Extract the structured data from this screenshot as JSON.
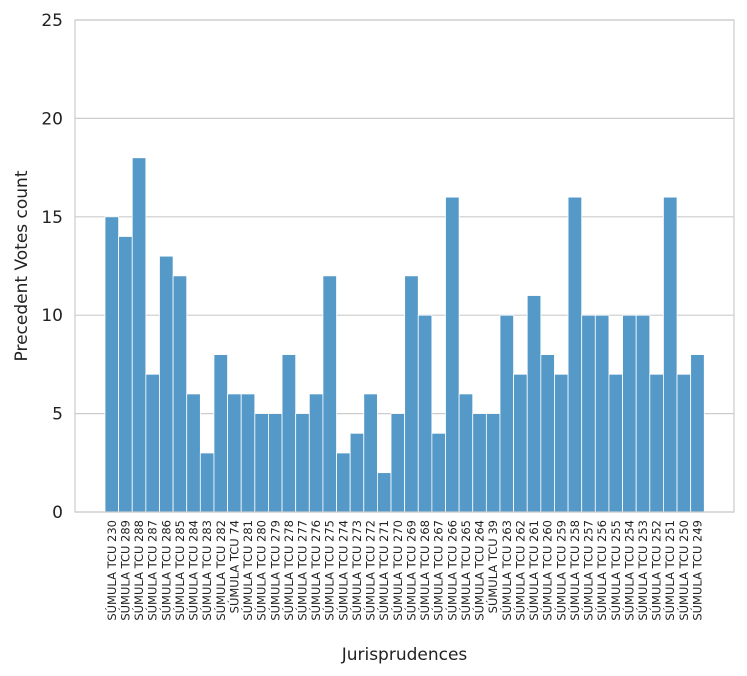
{
  "chart_data": {
    "type": "bar",
    "xlabel": "Jurisprudences",
    "ylabel": "Precedent Votes count",
    "ylim": [
      0,
      25
    ],
    "yticks": [
      0,
      5,
      10,
      15,
      20,
      25
    ],
    "grid": "horizontal",
    "bar_color": "#5599C8",
    "categories": [
      "SÚMULA TCU 230",
      "SÚMULA TCU 289",
      "SÚMULA TCU 288",
      "SÚMULA TCU 287",
      "SÚMULA TCU 286",
      "SÚMULA TCU 285",
      "SÚMULA TCU 284",
      "SÚMULA TCU 283",
      "SÚMULA TCU 282",
      "SÚMULA TCU 74",
      "SÚMULA TCU 281",
      "SÚMULA TCU 280",
      "SÚMULA TCU 279",
      "SÚMULA TCU 278",
      "SÚMULA TCU 277",
      "SÚMULA TCU 276",
      "SÚMULA TCU 275",
      "SÚMULA TCU 274",
      "SÚMULA TCU 273",
      "SÚMULA TCU 272",
      "SÚMULA TCU 271",
      "SÚMULA TCU 270",
      "SÚMULA TCU 269",
      "SÚMULA TCU 268",
      "SÚMULA TCU 267",
      "SÚMULA TCU 266",
      "SÚMULA TCU 265",
      "SÚMULA TCU 264",
      "SÚMULA TCU 39",
      "SÚMULA TCU 263",
      "SÚMULA TCU 262",
      "SÚMULA TCU 261",
      "SÚMULA TCU 260",
      "SÚMULA TCU 259",
      "SÚMULA TCU 258",
      "SÚMULA TCU 257",
      "SÚMULA TCU 256",
      "SÚMULA TCU 255",
      "SÚMULA TCU 254",
      "SÚMULA TCU 253",
      "SÚMULA TCU 252",
      "SÚMULA TCU 251",
      "SÚMULA TCU 250",
      "SÚMULA TCU 249"
    ],
    "values": [
      15,
      14,
      18,
      7,
      13,
      12,
      6,
      3,
      8,
      6,
      6,
      5,
      5,
      8,
      5,
      6,
      12,
      3,
      4,
      6,
      2,
      5,
      12,
      10,
      4,
      16,
      6,
      5,
      5,
      10,
      7,
      11,
      8,
      7,
      16,
      10,
      10,
      7,
      10,
      10,
      7,
      16,
      7,
      8
    ]
  }
}
